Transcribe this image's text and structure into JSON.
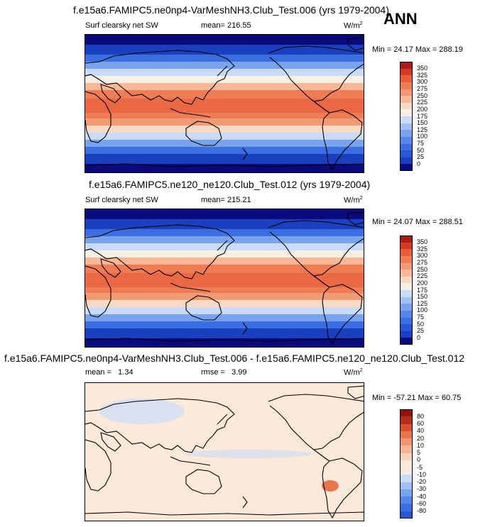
{
  "season": "ANN",
  "colors": {
    "abs": [
      "#0a0a7d",
      "#1a3fbf",
      "#2856d6",
      "#3b6ee0",
      "#5687e6",
      "#7aa3ee",
      "#a2c0f4",
      "#c9dbf8",
      "#f6f0e4",
      "#f8d9c4",
      "#f6b896",
      "#f29a74",
      "#ee7c54",
      "#e85e3a",
      "#d33a22",
      "#a81e16"
    ],
    "diff": [
      "#0a0a7d",
      "#1a3fbf",
      "#2856d6",
      "#3b6ee0",
      "#5687e6",
      "#7aa3ee",
      "#a2c0f4",
      "#c9dbf8",
      "#fde9d9",
      "#fde9d9",
      "#f8d3bc",
      "#f3b495",
      "#ee9670",
      "#e8764c",
      "#d8502e",
      "#b72c18",
      "#8e1410"
    ]
  },
  "panels": [
    {
      "title": "f.e15a6.FAMIPC5.ne0np4-VarMeshNH3.Club_Test.006 (yrs 1979-2004)",
      "left_label": "Surf clearsky net SW",
      "stat_label": "mean=",
      "stat_value": "216.55",
      "units": "W/m",
      "units_exp": "2",
      "min_label": "Min =",
      "min_value": "24.17",
      "max_label": "Max =",
      "max_value": "288.19",
      "colorbar_labels": [
        "350",
        "325",
        "300",
        "275",
        "250",
        "225",
        "200",
        "175",
        "150",
        "125",
        "100",
        "75",
        "50",
        "25",
        "0"
      ]
    },
    {
      "title": "f.e15a6.FAMIPC5.ne120_ne120.Club_Test.012 (yrs 1979-2004)",
      "left_label": "Surf clearsky net SW",
      "stat_label": "mean=",
      "stat_value": "215.21",
      "units": "W/m",
      "units_exp": "2",
      "min_label": "Min =",
      "min_value": "24.07",
      "max_label": "Max =",
      "max_value": "288.51",
      "colorbar_labels": [
        "350",
        "325",
        "300",
        "275",
        "250",
        "225",
        "200",
        "175",
        "150",
        "125",
        "100",
        "75",
        "50",
        "25",
        "0"
      ]
    },
    {
      "title": "f.e15a6.FAMIPC5.ne0np4-VarMeshNH3.Club_Test.006 - f.e15a6.FAMIPC5.ne120_ne120.Club_Test.012",
      "left_label": "mean =",
      "left_value": "1.34",
      "stat_label": "rmse =",
      "stat_value": "3.99",
      "units": "W/m",
      "units_exp": "2",
      "min_label": "Min =",
      "min_value": "-57.21",
      "max_label": "Max =",
      "max_value": "60.75",
      "colorbar_labels": [
        "80",
        "60",
        "40",
        "20",
        "10",
        "5",
        "0",
        "-5",
        "-10",
        "-20",
        "-30",
        "-40",
        "-60",
        "-80"
      ]
    }
  ]
}
